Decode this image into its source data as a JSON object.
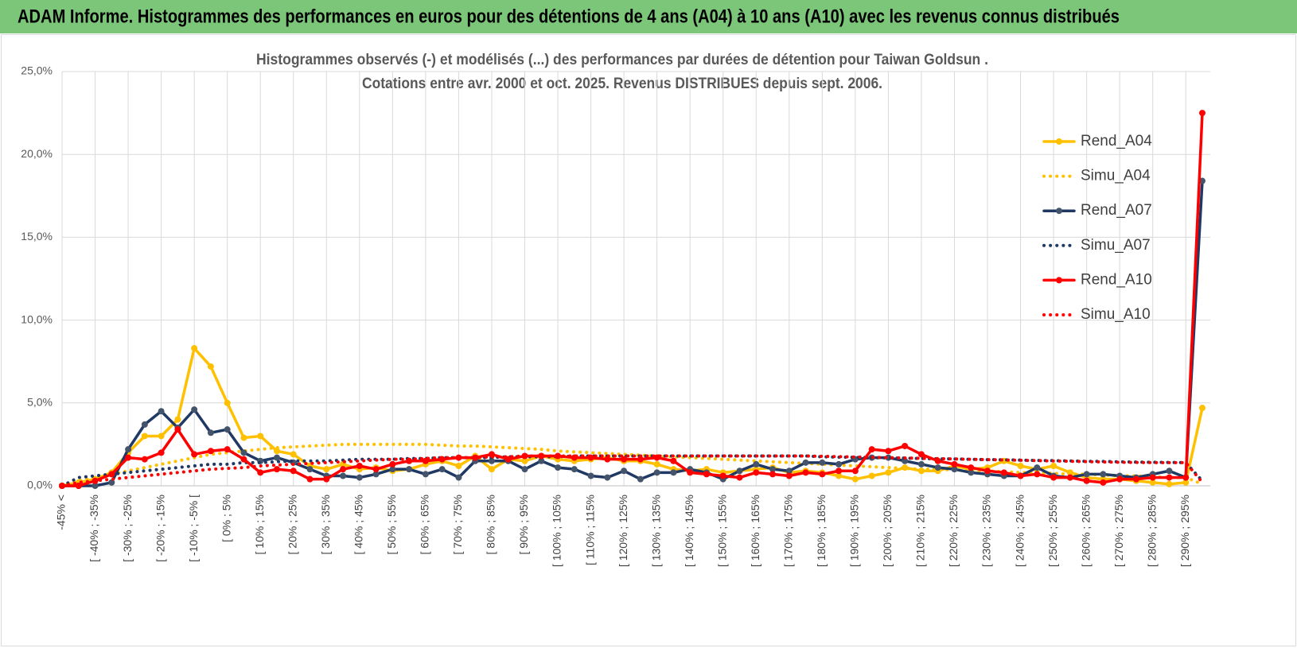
{
  "header": {
    "title": "ADAM Informe. Histogrammes des performances en euros pour des détentions de 4 ans (A04) à 10 ans (A10) avec les revenus connus distribués"
  },
  "chart_data": {
    "type": "line",
    "title": "Histogrammes observés (-) et modélisés (...) des performances par durées de détention pour Taiwan Goldsun .",
    "subtitle": "Cotations entre avr. 2000 et oct. 2025. Revenus DISTRIBUES depuis sept. 2006.",
    "categories": [
      "-45% <",
      null,
      "[ -40% ; -35%",
      null,
      "[ -30% ; -25%",
      null,
      "[ -20% ; -15%",
      null,
      "[ -10% ; -5% [",
      null,
      "[ 0% ; 5%",
      null,
      "[ 10% ; 15%",
      null,
      "[ 20% ; 25%",
      null,
      "[ 30% ; 35%",
      null,
      "[ 40% ; 45%",
      null,
      "[ 50% ; 55%",
      null,
      "[ 60% ; 65%",
      null,
      "[ 70% ; 75%",
      null,
      "[ 80% ; 85%",
      null,
      "[ 90% ; 95%",
      null,
      "[ 100% ; 105%",
      null,
      "[ 110% ; 115%",
      null,
      "[ 120% ; 125%",
      null,
      "[ 130% ; 135%",
      null,
      "[ 140% ; 145%",
      null,
      "[ 150% ; 155%",
      null,
      "[ 160% ; 165%",
      null,
      "[ 170% ; 175%",
      null,
      "[ 180% ; 185%",
      null,
      "[ 190% ; 195%",
      null,
      "[ 200% ; 205%",
      null,
      "[ 210% ; 215%",
      null,
      "[ 220% ; 225%",
      null,
      "[ 230% ; 235%",
      null,
      "[ 240% ; 245%",
      null,
      "[ 250% ; 255%",
      null,
      "[ 260% ; 265%",
      null,
      "[ 270% ; 275%",
      null,
      "[ 280% ; 285%",
      null,
      "[ 290% ; 295%",
      null
    ],
    "ylim": [
      0,
      25
    ],
    "yticks": [
      {
        "value": 0,
        "label": "0,0%"
      },
      {
        "value": 5,
        "label": "5,0%"
      },
      {
        "value": 10,
        "label": "10,0%"
      },
      {
        "value": 15,
        "label": "15,0%"
      },
      {
        "value": 20,
        "label": "20,0%"
      },
      {
        "value": 25,
        "label": "25,0%"
      }
    ],
    "grid": true,
    "legend": "right",
    "series": [
      {
        "name": "Rend_A04",
        "color": "#ffc000",
        "style": "solid",
        "markers": true,
        "values": [
          0,
          0.2,
          0.4,
          0.8,
          2.0,
          3.0,
          3.0,
          4.0,
          8.3,
          7.2,
          5.0,
          2.9,
          3.0,
          2.1,
          1.9,
          1.2,
          1.0,
          1.3,
          1.0,
          1.1,
          0.9,
          1.0,
          1.3,
          1.5,
          1.2,
          1.8,
          1.0,
          1.6,
          1.5,
          1.8,
          1.6,
          1.5,
          1.6,
          1.7,
          1.5,
          1.5,
          1.3,
          1.0,
          0.9,
          1.0,
          0.8,
          0.9,
          1.0,
          1.1,
          0.8,
          0.9,
          0.8,
          0.6,
          0.4,
          0.6,
          0.8,
          1.1,
          0.9,
          0.9,
          1.2,
          1.0,
          1.1,
          1.5,
          1.2,
          1.0,
          1.2,
          0.8,
          0.5,
          0.4,
          0.4,
          0.3,
          0.2,
          0.1,
          0.2,
          4.7
        ]
      },
      {
        "name": "Simu_A04",
        "color": "#ffc000",
        "style": "dotted",
        "markers": false,
        "values": [
          0,
          0.3,
          0.5,
          0.7,
          0.9,
          1.1,
          1.3,
          1.5,
          1.7,
          1.9,
          2.0,
          2.1,
          2.2,
          2.3,
          2.35,
          2.4,
          2.45,
          2.5,
          2.5,
          2.5,
          2.5,
          2.5,
          2.5,
          2.45,
          2.4,
          2.4,
          2.35,
          2.3,
          2.25,
          2.2,
          2.1,
          2.05,
          2.0,
          1.95,
          1.9,
          1.85,
          1.8,
          1.75,
          1.7,
          1.65,
          1.6,
          1.55,
          1.5,
          1.45,
          1.4,
          1.35,
          1.3,
          1.25,
          1.2,
          1.15,
          1.1,
          1.05,
          1.0,
          1.0,
          0.95,
          0.9,
          0.9,
          0.85,
          0.8,
          0.8,
          0.75,
          0.7,
          0.7,
          0.65,
          0.6,
          0.6,
          0.55,
          0.5,
          0.5,
          0.1
        ]
      },
      {
        "name": "Rend_A07",
        "color": "#203864",
        "marker_color": "#44546a",
        "style": "solid",
        "markers": true,
        "values": [
          0,
          0,
          0,
          0.2,
          2.2,
          3.7,
          4.5,
          3.5,
          4.6,
          3.2,
          3.4,
          2.0,
          1.5,
          1.7,
          1.4,
          1.0,
          0.6,
          0.6,
          0.5,
          0.7,
          1.0,
          1.0,
          0.7,
          1.0,
          0.5,
          1.5,
          1.5,
          1.5,
          1.0,
          1.5,
          1.1,
          1.0,
          0.6,
          0.5,
          0.9,
          0.4,
          0.8,
          0.8,
          1.0,
          0.8,
          0.4,
          0.9,
          1.3,
          1.0,
          0.9,
          1.4,
          1.4,
          1.3,
          1.6,
          1.7,
          1.7,
          1.5,
          1.3,
          1.1,
          1.0,
          0.8,
          0.7,
          0.6,
          0.6,
          1.1,
          0.6,
          0.5,
          0.7,
          0.7,
          0.6,
          0.5,
          0.7,
          0.9,
          0.5,
          18.4
        ]
      },
      {
        "name": "Simu_A07",
        "color": "#203864",
        "style": "dotted",
        "markers": false,
        "values": [
          0,
          0.5,
          0.6,
          0.7,
          0.8,
          0.9,
          1.0,
          1.1,
          1.2,
          1.3,
          1.3,
          1.4,
          1.4,
          1.45,
          1.5,
          1.5,
          1.5,
          1.55,
          1.6,
          1.6,
          1.6,
          1.65,
          1.65,
          1.7,
          1.7,
          1.7,
          1.7,
          1.75,
          1.75,
          1.75,
          1.75,
          1.8,
          1.8,
          1.8,
          1.8,
          1.8,
          1.8,
          1.8,
          1.8,
          1.8,
          1.8,
          1.8,
          1.8,
          1.8,
          1.8,
          1.8,
          1.75,
          1.73,
          1.72,
          1.7,
          1.68,
          1.67,
          1.65,
          1.63,
          1.62,
          1.6,
          1.58,
          1.57,
          1.55,
          1.53,
          1.52,
          1.5,
          1.48,
          1.47,
          1.45,
          1.43,
          1.42,
          1.41,
          1.4,
          0.3
        ]
      },
      {
        "name": "Rend_A10",
        "color": "#ff0000",
        "style": "solid",
        "markers": true,
        "values": [
          0,
          0,
          0.3,
          0.7,
          1.7,
          1.6,
          2.0,
          3.4,
          1.9,
          2.1,
          2.2,
          1.6,
          0.8,
          1.0,
          0.9,
          0.4,
          0.4,
          1.0,
          1.2,
          1.0,
          1.3,
          1.5,
          1.5,
          1.6,
          1.7,
          1.7,
          1.9,
          1.6,
          1.8,
          1.8,
          1.8,
          1.7,
          1.7,
          1.6,
          1.6,
          1.6,
          1.7,
          1.5,
          0.8,
          0.7,
          0.6,
          0.5,
          0.8,
          0.7,
          0.6,
          0.8,
          0.7,
          0.9,
          0.9,
          2.2,
          2.1,
          2.4,
          1.9,
          1.5,
          1.3,
          1.1,
          0.9,
          0.8,
          0.6,
          0.7,
          0.5,
          0.5,
          0.3,
          0.2,
          0.4,
          0.4,
          0.5,
          0.5,
          0.5,
          22.5
        ]
      },
      {
        "name": "Simu_A10",
        "color": "#ff0000",
        "style": "dotted",
        "markers": false,
        "values": [
          0,
          0.2,
          0.3,
          0.4,
          0.5,
          0.6,
          0.7,
          0.8,
          0.9,
          1.0,
          1.05,
          1.1,
          1.2,
          1.25,
          1.3,
          1.35,
          1.4,
          1.45,
          1.5,
          1.55,
          1.6,
          1.6,
          1.65,
          1.7,
          1.7,
          1.7,
          1.75,
          1.75,
          1.8,
          1.8,
          1.8,
          1.8,
          1.8,
          1.8,
          1.8,
          1.8,
          1.8,
          1.8,
          1.8,
          1.8,
          1.8,
          1.8,
          1.8,
          1.8,
          1.8,
          1.8,
          1.78,
          1.76,
          1.74,
          1.72,
          1.7,
          1.68,
          1.66,
          1.64,
          1.62,
          1.6,
          1.58,
          1.56,
          1.54,
          1.52,
          1.5,
          1.48,
          1.46,
          1.44,
          1.42,
          1.41,
          1.4,
          1.4,
          1.4,
          0.2
        ]
      }
    ]
  }
}
